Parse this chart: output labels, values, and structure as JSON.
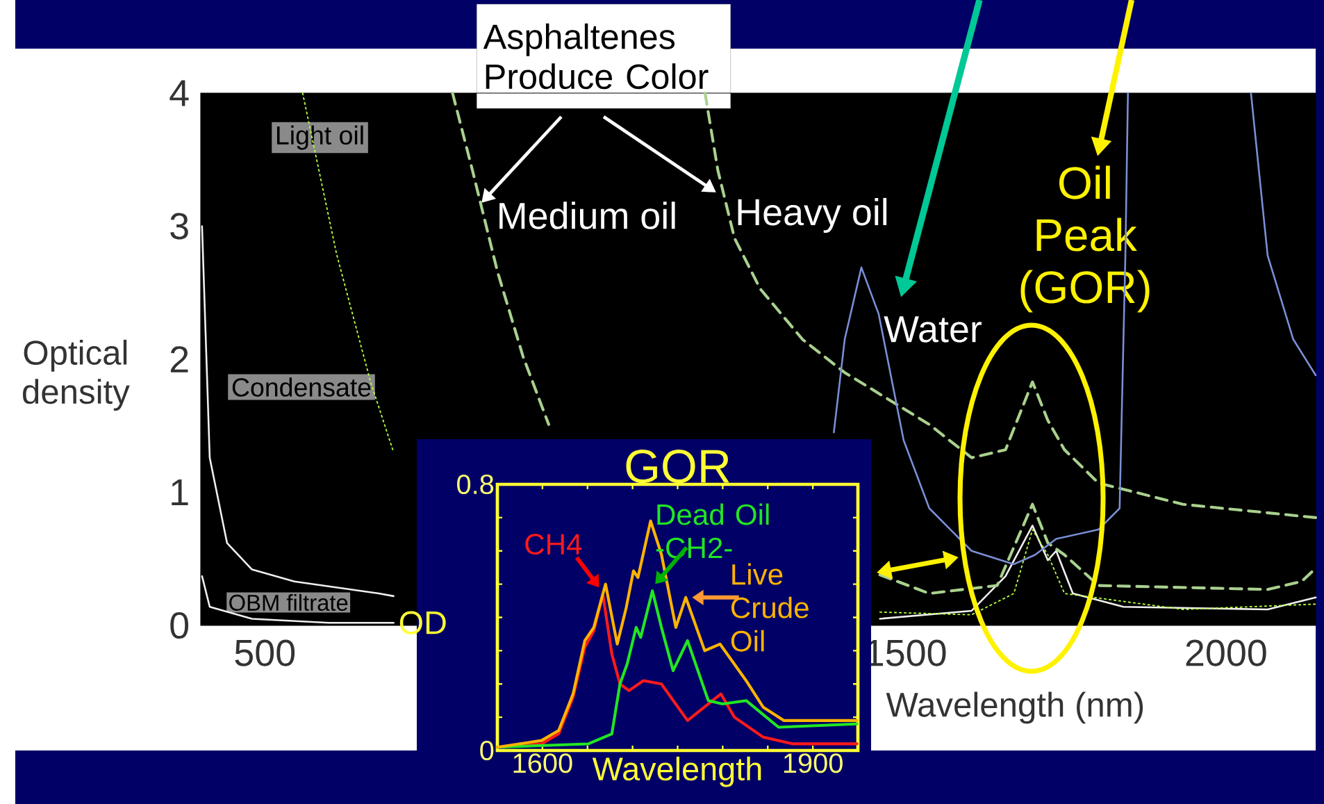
{
  "chart_data": [
    {
      "type": "line",
      "xlabel": "Wavelength (nm)",
      "ylabel": "Optical density",
      "xlim": [
        400,
        2140
      ],
      "ylim": [
        0,
        4
      ],
      "xticks": [
        500,
        1500,
        2000
      ],
      "yticks": [
        0,
        1,
        2,
        3,
        4
      ],
      "series": [
        {
          "color": "#f0f0f0",
          "line_style": "solid",
          "x": [
            402,
            414,
            441,
            480,
            546,
            678,
            701,
            720,
            1460,
            1603,
            1656,
            1698,
            1722,
            1735,
            1761,
            1840,
            2065,
            2140
          ],
          "values": [
            3.0,
            1.26,
            0.62,
            0.42,
            0.33,
            0.24,
            0.22,
            null,
            0.05,
            0.11,
            0.37,
            0.75,
            0.49,
            0.56,
            0.24,
            0.14,
            0.12,
            0.21
          ]
        },
        {
          "color": "#f0f0f0",
          "line_style": "solid",
          "x": [
            402,
            414,
            480,
            600,
            701
          ],
          "values": [
            0.37,
            0.14,
            0.05,
            0.02,
            0.02
          ]
        },
        {
          "color": "#b4ff3c",
          "line_style": "dotted",
          "x": [
            559,
            612,
            665,
            701,
            720,
            1460,
            1603,
            1669,
            1698,
            1722,
            1748,
            1933,
            2140
          ],
          "values": [
            4.0,
            2.79,
            1.83,
            1.3,
            null,
            0.1,
            0.08,
            0.24,
            0.72,
            0.53,
            0.24,
            0.12,
            0.16
          ]
        },
        {
          "color": "#a9d18e",
          "line_style": "dashed",
          "x": [
            793,
            824,
            863,
            903,
            943,
            960,
            1460,
            1537,
            1643,
            1698,
            1722,
            1748,
            1801,
            2065,
            2118,
            2140
          ],
          "values": [
            4.0,
            3.42,
            2.66,
            2.02,
            1.51,
            null,
            0.38,
            0.24,
            0.3,
            0.91,
            0.62,
            0.53,
            0.3,
            0.27,
            0.33,
            0.43
          ]
        },
        {
          "color": "#a9d18e",
          "line_style": "dashed",
          "x": [
            1187,
            1207,
            1233,
            1273,
            1339,
            1405,
            1537,
            1603,
            1656,
            1698,
            1722,
            1748,
            1801,
            1933,
            2140
          ],
          "values": [
            4.0,
            3.42,
            2.91,
            2.53,
            2.15,
            1.9,
            1.51,
            1.26,
            1.32,
            1.83,
            1.54,
            1.32,
            1.07,
            0.91,
            0.81
          ]
        },
        {
          "color": "#7b8fd6",
          "line_style": "solid",
          "x": [
            1388,
            1405,
            1431,
            1458,
            1497,
            1537,
            1603,
            1669,
            1702,
            1735,
            1801,
            1834,
            1843,
            1847,
            1900,
            2039,
            2065,
            2105,
            2140
          ],
          "values": [
            1.45,
            2.15,
            2.69,
            2.34,
            1.39,
            0.88,
            0.56,
            0.46,
            0.53,
            0.65,
            0.72,
            0.88,
            2.78,
            4.0,
            null,
            4.0,
            2.78,
            2.15,
            1.88
          ]
        }
      ],
      "annotations": [
        "Asphaltenes Produce Color",
        "Light oil",
        "Condensate",
        "OBM filtrate",
        "Medium oil",
        "Heavy oil",
        "Water",
        "Oil Peak (GOR)"
      ]
    },
    {
      "type": "line",
      "title": "GOR",
      "xlabel": "Wavelength",
      "ylabel": "OD",
      "xlim": [
        1550,
        1950
      ],
      "ylim": [
        0,
        0.8
      ],
      "xticks": [
        {
          "value": 1550,
          "label": null
        },
        1600,
        {
          "value": 1650,
          "label": null
        },
        {
          "value": 1700,
          "label": null
        },
        {
          "value": 1750,
          "label": null
        },
        {
          "value": 1800,
          "label": null
        },
        {
          "value": 1850,
          "label": null
        },
        1900,
        {
          "value": 1950,
          "label": null
        }
      ],
      "yticks": [
        0,
        {
          "value": 0.1,
          "label": null
        },
        {
          "value": 0.2,
          "label": null
        },
        {
          "value": 0.3,
          "label": null
        },
        {
          "value": 0.4,
          "label": null
        },
        {
          "value": 0.5,
          "label": null
        },
        {
          "value": 0.6,
          "label": null
        },
        {
          "value": 0.7,
          "label": null
        },
        0.8
      ],
      "series": [
        {
          "name": "CH4",
          "color": "#ff1a1a",
          "x": [
            1550,
            1599,
            1618,
            1634,
            1647,
            1657,
            1667,
            1677,
            1686,
            1696,
            1712,
            1732,
            1761,
            1798,
            1813,
            1845,
            1878,
            1949
          ],
          "values": [
            0.01,
            0.02,
            0.05,
            0.16,
            0.31,
            0.36,
            0.47,
            0.29,
            0.2,
            0.18,
            0.21,
            0.2,
            0.09,
            0.17,
            0.1,
            0.04,
            0.02,
            0.02
          ]
        },
        {
          "name": "Dead Oil -CH2-",
          "color": "#22e622",
          "x": [
            1550,
            1651,
            1677,
            1686,
            1694,
            1704,
            1709,
            1722,
            1732,
            1745,
            1761,
            1784,
            1800,
            1826,
            1862,
            1949
          ],
          "values": [
            0.01,
            0.02,
            0.05,
            0.2,
            0.26,
            0.37,
            0.34,
            0.48,
            0.37,
            0.24,
            0.33,
            0.15,
            0.14,
            0.15,
            0.07,
            0.08
          ]
        },
        {
          "name": "Live Crude Oil",
          "color": "#ffb400",
          "x": [
            1550,
            1599,
            1618,
            1634,
            1647,
            1657,
            1670,
            1683,
            1693,
            1701,
            1706,
            1720,
            1732,
            1748,
            1759,
            1780,
            1797,
            1826,
            1845,
            1868,
            1949
          ],
          "values": [
            0.01,
            0.03,
            0.06,
            0.17,
            0.33,
            0.37,
            0.5,
            0.32,
            0.43,
            0.54,
            0.52,
            0.69,
            0.59,
            0.37,
            0.46,
            0.3,
            0.32,
            0.21,
            0.13,
            0.09,
            0.09
          ]
        }
      ]
    }
  ]
}
